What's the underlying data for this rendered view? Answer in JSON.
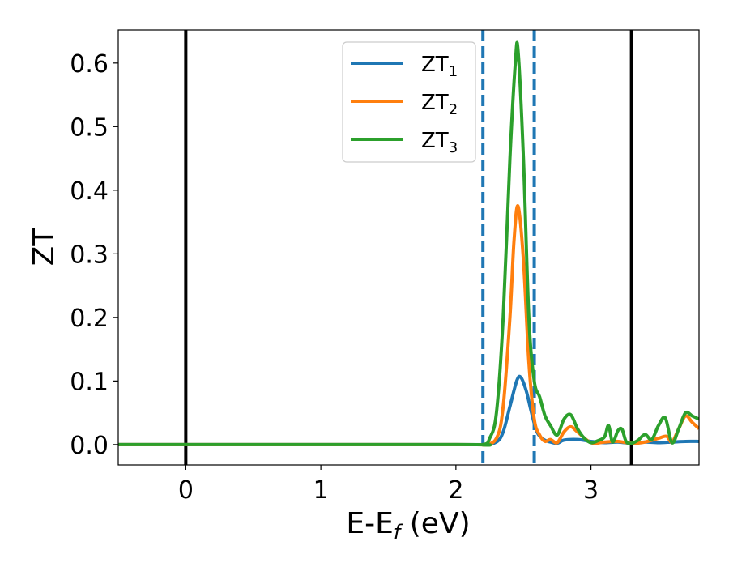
{
  "chart_data": {
    "type": "line",
    "xlabel": "E-E",
    "xlabel_sub": "f",
    "xlabel_unit": " (eV)",
    "ylabel": "ZT",
    "xlim": [
      -0.5,
      3.8
    ],
    "ylim": [
      -0.032,
      0.652
    ],
    "xticks": [
      0,
      1,
      2,
      3
    ],
    "yticks": [
      0.0,
      0.1,
      0.2,
      0.3,
      0.4,
      0.5,
      0.6
    ],
    "grid": false,
    "legend_position": "upper-center",
    "vlines": [
      {
        "x": 0.0,
        "style": "solid",
        "color": "#000000"
      },
      {
        "x": 3.3,
        "style": "solid",
        "color": "#000000"
      },
      {
        "x": 2.2,
        "style": "dashed",
        "color": "#1f77b4"
      },
      {
        "x": 2.58,
        "style": "dashed",
        "color": "#1f77b4"
      }
    ],
    "series": [
      {
        "name": "ZT",
        "name_sub": "1",
        "color": "#1f77b4",
        "x": [
          -0.5,
          2.0,
          2.2,
          2.3,
          2.35,
          2.4,
          2.45,
          2.48,
          2.52,
          2.56,
          2.6,
          2.65,
          2.7,
          2.75,
          2.8,
          2.9,
          3.0,
          3.1,
          3.2,
          3.3,
          3.4,
          3.5,
          3.6,
          3.7,
          3.8
        ],
        "values": [
          0.0,
          0.0,
          0.0,
          0.004,
          0.02,
          0.06,
          0.1,
          0.106,
          0.085,
          0.05,
          0.02,
          0.008,
          0.004,
          0.002,
          0.007,
          0.008,
          0.005,
          0.003,
          0.004,
          0.002,
          0.004,
          0.003,
          0.004,
          0.005,
          0.005
        ]
      },
      {
        "name": "ZT",
        "name_sub": "2",
        "color": "#ff7f0e",
        "x": [
          -0.5,
          2.0,
          2.2,
          2.3,
          2.35,
          2.4,
          2.43,
          2.46,
          2.5,
          2.54,
          2.58,
          2.62,
          2.66,
          2.7,
          2.75,
          2.8,
          2.85,
          2.9,
          3.0,
          3.1,
          3.2,
          3.3,
          3.4,
          3.5,
          3.56,
          3.6,
          3.65,
          3.7,
          3.75,
          3.8
        ],
        "values": [
          0.0,
          0.0,
          0.0,
          0.01,
          0.06,
          0.2,
          0.32,
          0.375,
          0.29,
          0.13,
          0.04,
          0.015,
          0.005,
          0.008,
          0.003,
          0.02,
          0.028,
          0.02,
          0.003,
          0.004,
          0.005,
          0.002,
          0.004,
          0.01,
          0.013,
          0.004,
          0.025,
          0.045,
          0.035,
          0.025
        ]
      },
      {
        "name": "ZT",
        "name_sub": "3",
        "color": "#2ca02c",
        "x": [
          -0.5,
          2.0,
          2.2,
          2.25,
          2.3,
          2.35,
          2.4,
          2.44,
          2.46,
          2.5,
          2.54,
          2.58,
          2.62,
          2.66,
          2.7,
          2.75,
          2.8,
          2.85,
          2.9,
          2.95,
          3.0,
          3.05,
          3.1,
          3.13,
          3.16,
          3.2,
          3.23,
          3.26,
          3.3,
          3.35,
          3.4,
          3.45,
          3.5,
          3.55,
          3.6,
          3.65,
          3.7,
          3.75,
          3.8
        ],
        "values": [
          0.0,
          0.0,
          0.0,
          0.01,
          0.05,
          0.2,
          0.45,
          0.6,
          0.62,
          0.45,
          0.2,
          0.1,
          0.075,
          0.045,
          0.03,
          0.015,
          0.04,
          0.047,
          0.025,
          0.01,
          0.003,
          0.006,
          0.012,
          0.03,
          0.004,
          0.022,
          0.024,
          0.005,
          0.002,
          0.007,
          0.016,
          0.008,
          0.03,
          0.042,
          0.003,
          0.025,
          0.05,
          0.045,
          0.04
        ]
      }
    ]
  }
}
